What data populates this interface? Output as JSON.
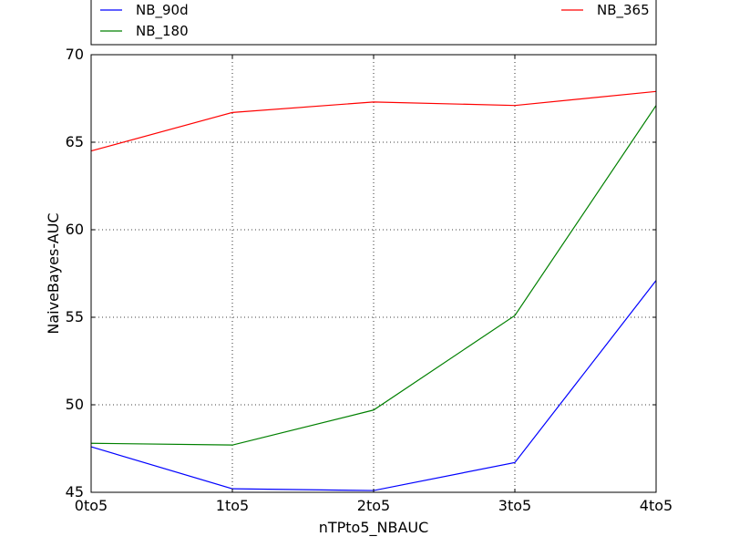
{
  "chart_data": {
    "type": "line",
    "title": "",
    "xlabel": "nTPto5_NBAUC",
    "ylabel": "NaiveBayes-AUC",
    "categories": [
      "0to5",
      "1to5",
      "2to5",
      "3to5",
      "4to5"
    ],
    "ylim": [
      45,
      70
    ],
    "yticks": [
      45,
      50,
      55,
      60,
      65,
      70
    ],
    "grid": true,
    "legend_position": "top",
    "series": [
      {
        "name": "NB_90d",
        "color": "#0000ff",
        "values": [
          47.6,
          45.2,
          45.1,
          46.7,
          57.1
        ]
      },
      {
        "name": "NB_180",
        "color": "#008000",
        "values": [
          47.8,
          47.7,
          49.7,
          55.1,
          67.1
        ]
      },
      {
        "name": "NB_365",
        "color": "#ff0000",
        "values": [
          64.5,
          66.7,
          67.3,
          67.1,
          67.9
        ]
      }
    ]
  }
}
